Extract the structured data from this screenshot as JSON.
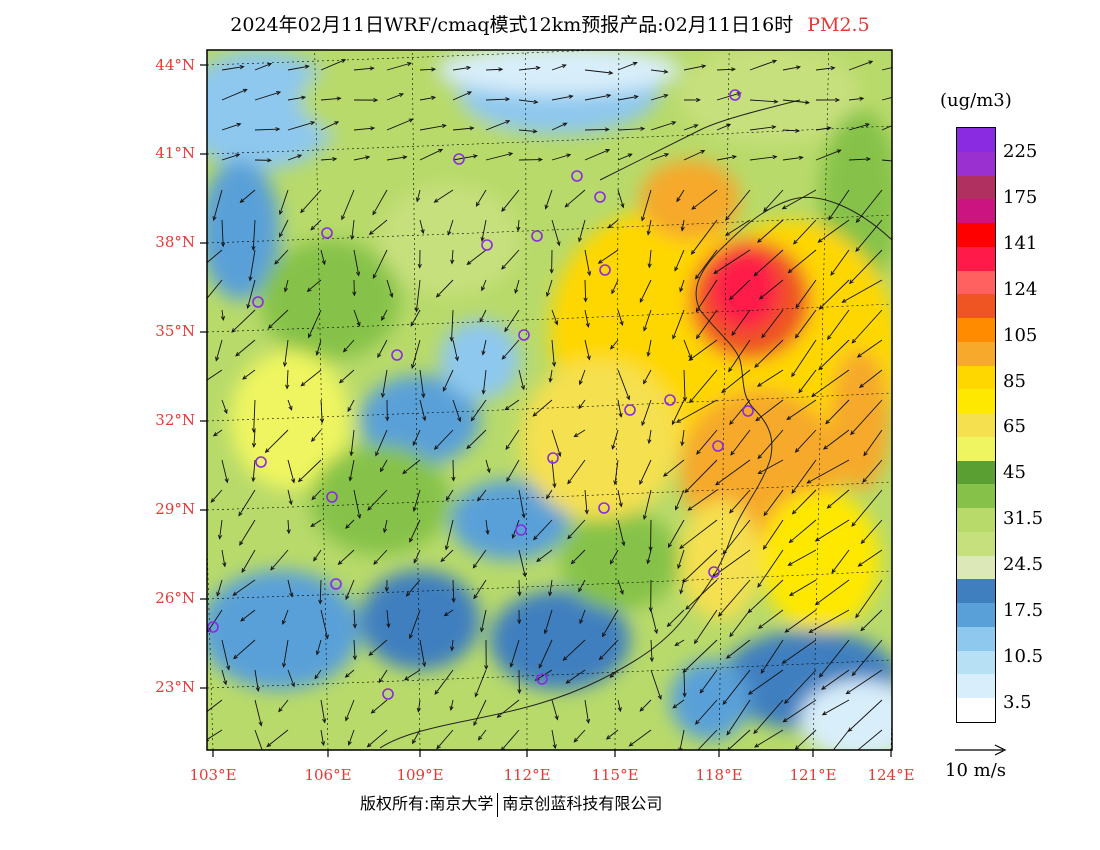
{
  "header": {
    "title_main": "2024年02月11日WRF/cmaq模式12km预报产品:02月11日16时",
    "title_pollutant": "PM2.5"
  },
  "axes": {
    "lat_labels": [
      "44°N",
      "41°N",
      "38°N",
      "35°N",
      "32°N",
      "29°N",
      "26°N",
      "23°N"
    ],
    "lat_values": [
      44,
      41,
      38,
      35,
      32,
      29,
      26,
      23
    ],
    "lon_labels": [
      "103°E",
      "106°E",
      "109°E",
      "112°E",
      "115°E",
      "118°E",
      "121°E",
      "124°E"
    ],
    "lon_values": [
      103,
      106,
      109,
      112,
      115,
      118,
      121,
      124
    ]
  },
  "legend": {
    "unit": "(ug/m3)",
    "levels": [
      "225",
      "175",
      "141",
      "124",
      "105",
      "85",
      "65",
      "45",
      "31.5",
      "24.5",
      "17.5",
      "10.5",
      "3.5"
    ],
    "colors": [
      "#8a2be2",
      "#9b30d0",
      "#b03060",
      "#cc1480",
      "#ff0000",
      "#ff1a4a",
      "#ff6060",
      "#ee5522",
      "#ff8c00",
      "#f6a92a",
      "#ffd700",
      "#ffe800",
      "#f5e050",
      "#eef560",
      "#5a9f32",
      "#86c24a",
      "#b8da6a",
      "#c7e07e",
      "#dde8b8",
      "#3f7fbf",
      "#5aa0d8",
      "#8ec8ee",
      "#b7e0f5",
      "#d8eefa",
      "#ffffff"
    ]
  },
  "wind": {
    "scale_label": "10 m/s"
  },
  "footer": {
    "copyright_left": "版权所有:南京大学",
    "copyright_right": "南京创蓝科技有限公司"
  }
}
